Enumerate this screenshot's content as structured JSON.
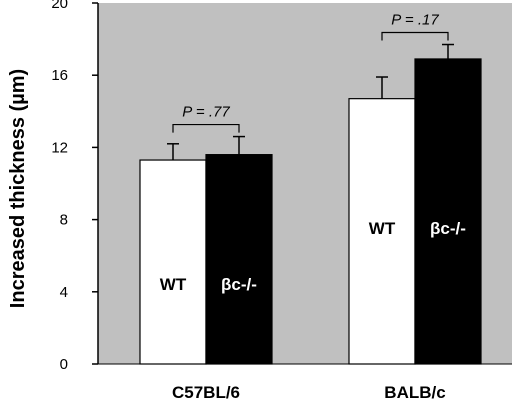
{
  "chart_data": {
    "type": "bar",
    "categories": [
      "C57BL/6",
      "BALB/c"
    ],
    "series": [
      {
        "name": "WT",
        "values": [
          11.3,
          14.7
        ],
        "errors": [
          0.9,
          1.2
        ],
        "color": "#ffffff",
        "label_color": "#000000"
      },
      {
        "name": "βc-/-",
        "values": [
          11.6,
          16.9
        ],
        "errors": [
          1.0,
          0.8
        ],
        "color": "#000000",
        "label_color": "#ffffff"
      }
    ],
    "bar_labels": [
      [
        "WT",
        "βc-/-"
      ],
      [
        "WT",
        "βc-/-"
      ]
    ],
    "p_values": [
      "P = .77",
      "P = .17"
    ],
    "ylabel": "Increased thickness (µm)",
    "xlabel": "",
    "ylim": [
      0,
      20
    ],
    "yticks": [
      0,
      4,
      8,
      12,
      16,
      20
    ],
    "plot_background": "#c0c0c0",
    "grid": false,
    "legend": "none"
  }
}
